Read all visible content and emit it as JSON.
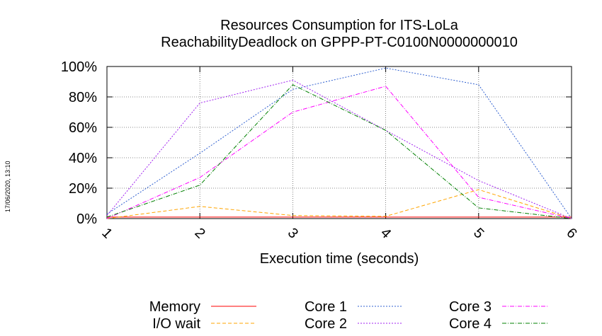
{
  "chart_data": {
    "type": "line",
    "title": [
      "Resources Consumption for ITS-LoLa",
      "ReachabilityDeadlock on GPPP-PT-C0100N0000000010"
    ],
    "xlabel": "Execution time (seconds)",
    "ylabel": "",
    "x": [
      1,
      2,
      3,
      4,
      5,
      6
    ],
    "x_ticks": [
      "1",
      "2",
      "3",
      "4",
      "5",
      "6"
    ],
    "y_ticks": [
      "0%",
      "20%",
      "40%",
      "60%",
      "80%",
      "100%"
    ],
    "xlim": [
      1,
      6
    ],
    "ylim": [
      0,
      100
    ],
    "grid": true,
    "legend_position": "bottom",
    "series": [
      {
        "name": "Memory",
        "color": "#ff0000",
        "dash": "solid",
        "values": [
          1,
          1,
          1,
          1,
          1,
          1
        ]
      },
      {
        "name": "I/O wait",
        "color": "#ffa500",
        "dash": "dashed",
        "values": [
          0,
          8,
          2,
          1.5,
          19,
          0
        ]
      },
      {
        "name": "Core 1",
        "color": "#3060d0",
        "dash": "dotted",
        "values": [
          3,
          43,
          85,
          99,
          88,
          0
        ]
      },
      {
        "name": "Core 2",
        "color": "#a020f0",
        "dash": "dotted",
        "values": [
          2,
          76,
          91,
          58,
          25,
          0
        ]
      },
      {
        "name": "Core 3",
        "color": "#ff00ff",
        "dash": "dashdot",
        "values": [
          0,
          27,
          70,
          87,
          14,
          0
        ]
      },
      {
        "name": "Core 4",
        "color": "#008000",
        "dash": "dashdot",
        "values": [
          1,
          22,
          88,
          58,
          7,
          0
        ]
      }
    ]
  },
  "timestamp": "17/06/2020, 13:10"
}
